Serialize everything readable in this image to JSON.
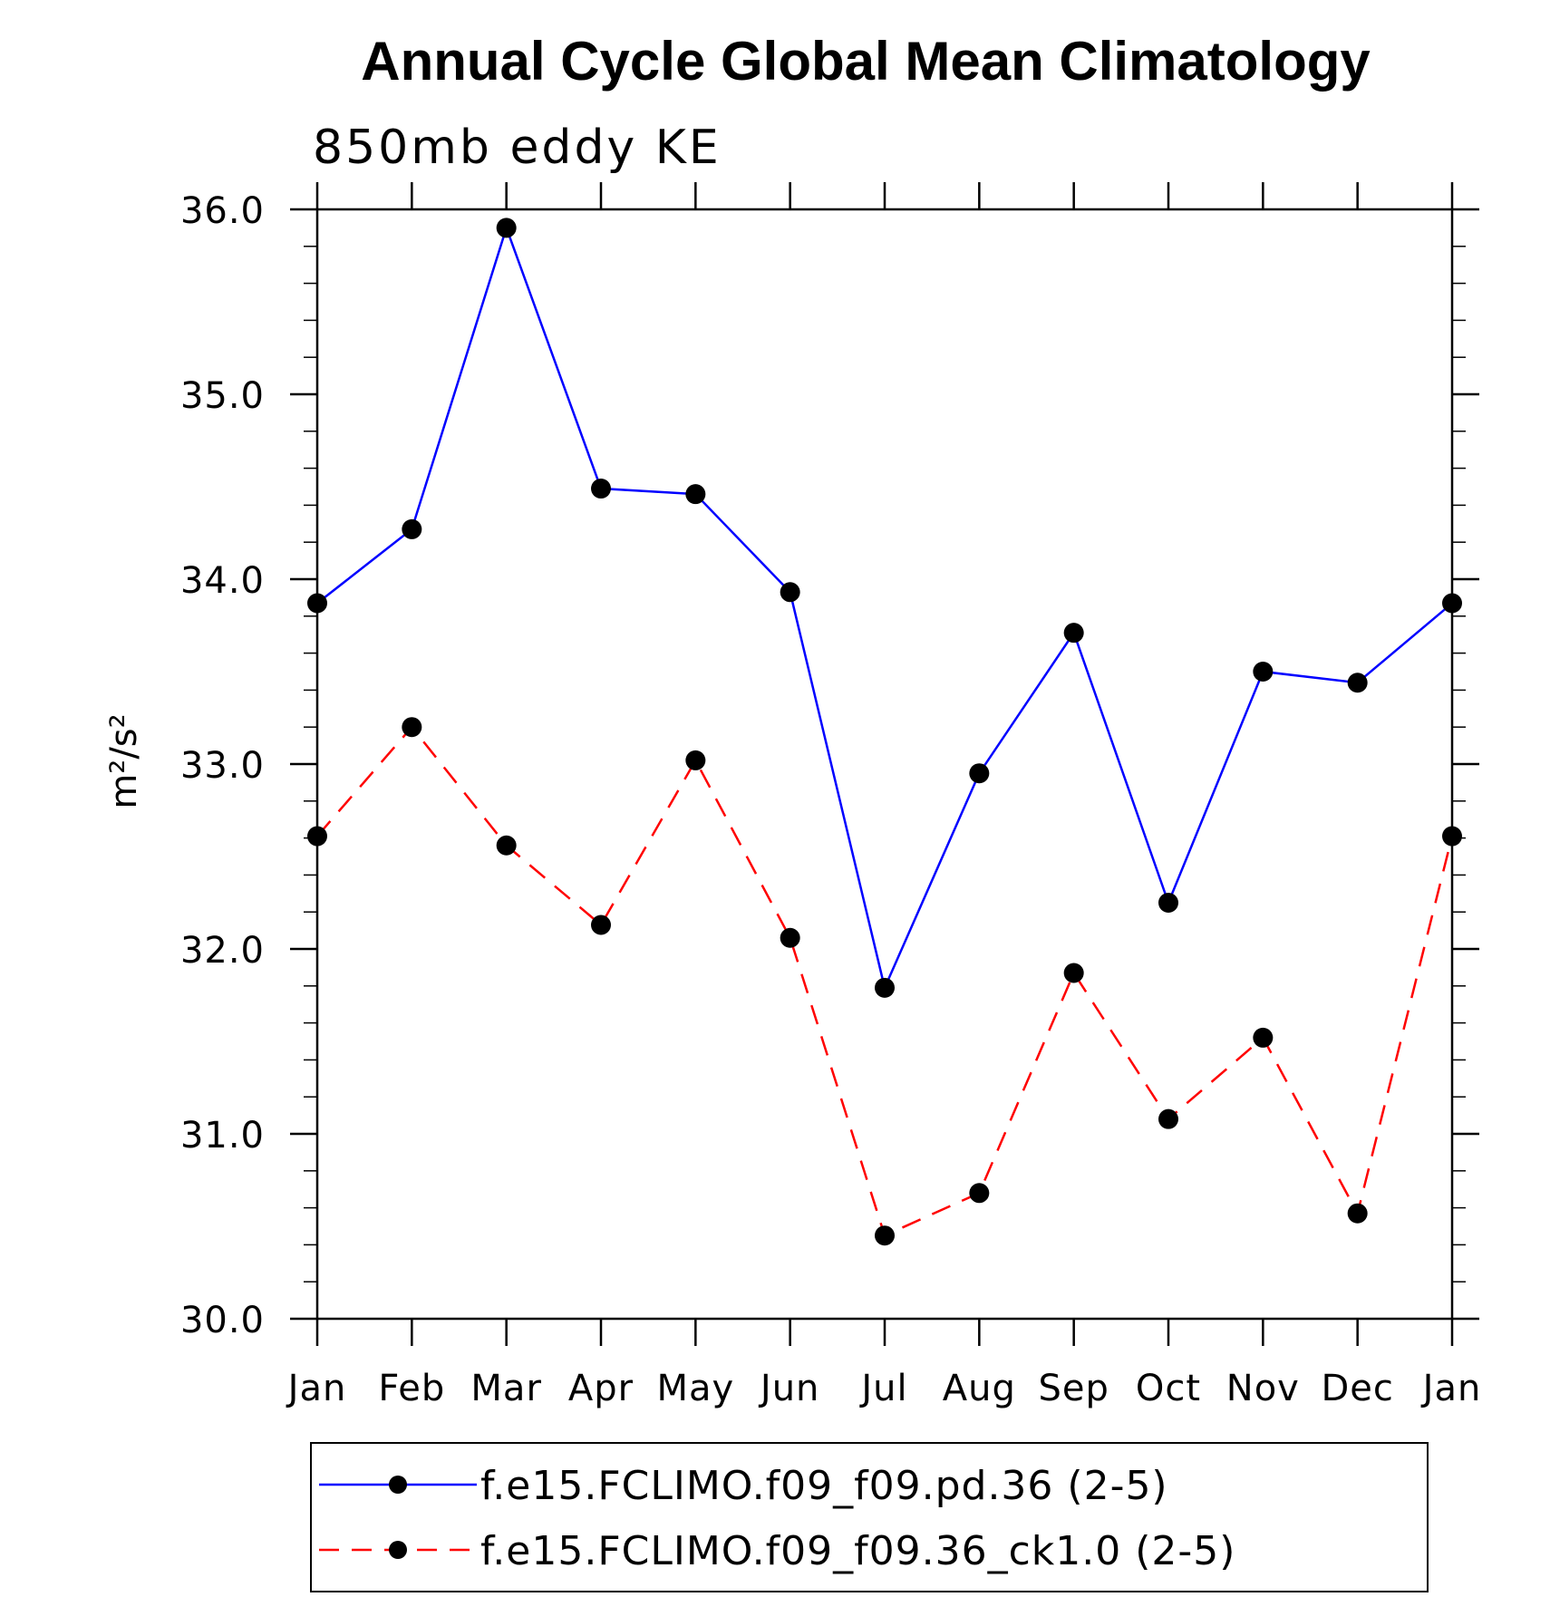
{
  "chart_data": {
    "type": "line",
    "title": "Annual Cycle Global Mean Climatology",
    "subtitle": "850mb eddy KE",
    "ylabel": "m²/s²",
    "xlabel": "",
    "categories": [
      "Jan",
      "Feb",
      "Mar",
      "Apr",
      "May",
      "Jun",
      "Jul",
      "Aug",
      "Sep",
      "Oct",
      "Nov",
      "Dec",
      "Jan"
    ],
    "ylim": [
      30.0,
      36.0
    ],
    "yticks": [
      "30.0",
      "31.0",
      "32.0",
      "33.0",
      "34.0",
      "35.0",
      "36.0"
    ],
    "ytick_values": [
      30,
      31,
      32,
      33,
      34,
      35,
      36
    ],
    "grid": false,
    "series": [
      {
        "name": "f.e15.FCLIMO.f09_f09.pd.36 (2-5)",
        "color": "#0000ff",
        "line_style": "solid",
        "marker": "filled-circle",
        "values": [
          33.87,
          34.27,
          35.9,
          34.49,
          34.46,
          33.93,
          31.79,
          32.95,
          33.71,
          32.25,
          33.5,
          33.44,
          33.87
        ]
      },
      {
        "name": "f.e15.FCLIMO.f09_f09.36_ck1.0 (2-5)",
        "color": "#ff0000",
        "line_style": "dashed",
        "marker": "filled-circle",
        "values": [
          32.61,
          33.2,
          32.56,
          32.13,
          33.02,
          32.06,
          30.45,
          30.68,
          31.87,
          31.08,
          31.52,
          30.57,
          32.61
        ]
      }
    ],
    "legend_position": "bottom"
  }
}
